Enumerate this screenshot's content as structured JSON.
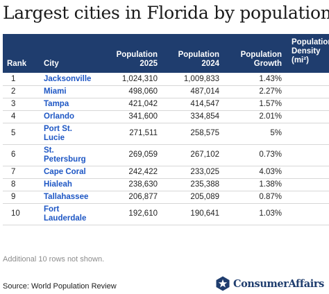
{
  "title": "Largest cities in Florida by population",
  "table": {
    "headers": {
      "rank": "Rank",
      "city": "City",
      "pop2025": [
        "Population",
        "2025"
      ],
      "pop2024": [
        "Population",
        "2024"
      ],
      "growth": [
        "Population",
        "Growth"
      ],
      "density": [
        "Population",
        "Density",
        "(mi²)"
      ]
    },
    "rows": [
      {
        "rank": "1",
        "city": [
          "Jacksonville"
        ],
        "pop2025": "1,024,310",
        "pop2024": "1,009,833",
        "growth": "1.43%"
      },
      {
        "rank": "2",
        "city": [
          "Miami"
        ],
        "pop2025": "498,060",
        "pop2024": "487,014",
        "growth": "2.27%"
      },
      {
        "rank": "3",
        "city": [
          "Tampa"
        ],
        "pop2025": "421,042",
        "pop2024": "414,547",
        "growth": "1.57%"
      },
      {
        "rank": "4",
        "city": [
          "Orlando"
        ],
        "pop2025": "341,600",
        "pop2024": "334,854",
        "growth": "2.01%"
      },
      {
        "rank": "5",
        "city": [
          "Port St.",
          "Lucie"
        ],
        "pop2025": "271,511",
        "pop2024": "258,575",
        "growth": "5%"
      },
      {
        "rank": "6",
        "city": [
          "St.",
          "Petersburg"
        ],
        "pop2025": "269,059",
        "pop2024": "267,102",
        "growth": "0.73%"
      },
      {
        "rank": "7",
        "city": [
          "Cape Coral"
        ],
        "pop2025": "242,422",
        "pop2024": "233,025",
        "growth": "4.03%"
      },
      {
        "rank": "8",
        "city": [
          "Hialeah"
        ],
        "pop2025": "238,630",
        "pop2024": "235,388",
        "growth": "1.38%"
      },
      {
        "rank": "9",
        "city": [
          "Tallahassee"
        ],
        "pop2025": "206,877",
        "pop2024": "205,089",
        "growth": "0.87%"
      },
      {
        "rank": "10",
        "city": [
          "Fort",
          "Lauderdale"
        ],
        "pop2025": "192,610",
        "pop2024": "190,641",
        "growth": "1.03%"
      }
    ]
  },
  "footnote": "Additional 10 rows not shown.",
  "source": "Source: World Population Review",
  "brand": {
    "name": "ConsumerAffairs",
    "logo_icon": "star-badge-icon",
    "color": "#1f3d6e"
  },
  "colors": {
    "header_bg": "#1f3d6e",
    "city_link": "#1d56c4"
  }
}
